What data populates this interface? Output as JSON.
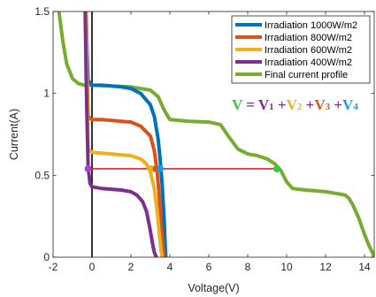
{
  "chart_data": {
    "type": "line",
    "title": "",
    "xlabel": "Voltage(V)",
    "ylabel": "Current(A)",
    "xlim": [
      -2,
      14.5
    ],
    "ylim": [
      0,
      1.5
    ],
    "xticks": [
      -2,
      0,
      2,
      4,
      6,
      8,
      10,
      12,
      14
    ],
    "yticks": [
      0,
      0.5,
      1,
      1.5
    ],
    "ytick_labels": [
      "0",
      "0.5",
      "1",
      "1.5"
    ],
    "legend_position": "top-right",
    "series": [
      {
        "name": "Irradiation 1000W/m2",
        "color": "#0072BD",
        "x": [
          -0.3,
          -0.25,
          -0.2,
          0,
          0.5,
          1,
          1.5,
          2,
          2.5,
          3,
          3.2,
          3.4,
          3.5,
          3.6,
          3.7,
          3.75,
          3.78,
          3.8
        ],
        "y": [
          1.5,
          1.25,
          1.08,
          1.05,
          1.05,
          1.045,
          1.04,
          1.03,
          1.0,
          0.93,
          0.86,
          0.72,
          0.6,
          0.45,
          0.25,
          0.1,
          0.02,
          0
        ]
      },
      {
        "name": "Irradiation 800W/m2",
        "color": "#D95319",
        "x": [
          -0.3,
          -0.25,
          -0.2,
          0,
          0.5,
          1,
          1.5,
          2,
          2.5,
          3,
          3.2,
          3.35,
          3.45,
          3.55,
          3.65,
          3.7
        ],
        "y": [
          1.5,
          1.1,
          0.86,
          0.84,
          0.84,
          0.835,
          0.83,
          0.825,
          0.8,
          0.74,
          0.65,
          0.52,
          0.38,
          0.2,
          0.06,
          0
        ]
      },
      {
        "name": "Irradiation 600W/m2",
        "color": "#EDB120",
        "x": [
          -0.3,
          -0.25,
          -0.2,
          0,
          0.5,
          1,
          1.5,
          2,
          2.5,
          2.8,
          3.0,
          3.2,
          3.35,
          3.45,
          3.55,
          3.6
        ],
        "y": [
          1.5,
          1.0,
          0.66,
          0.64,
          0.635,
          0.63,
          0.625,
          0.62,
          0.6,
          0.57,
          0.52,
          0.42,
          0.28,
          0.15,
          0.04,
          0
        ]
      },
      {
        "name": "Irradiation 400W/m2",
        "color": "#7E2F8E",
        "x": [
          -0.35,
          -0.3,
          -0.25,
          -0.2,
          -0.1,
          0,
          0.5,
          1,
          1.5,
          2,
          2.3,
          2.6,
          2.8,
          3.0,
          3.1,
          3.2,
          3.3
        ],
        "y": [
          1.5,
          1.1,
          0.8,
          0.55,
          0.45,
          0.43,
          0.42,
          0.415,
          0.41,
          0.4,
          0.38,
          0.34,
          0.28,
          0.16,
          0.09,
          0.03,
          0
        ]
      },
      {
        "name": "Final current profile",
        "color": "#77AC30",
        "x": [
          -1.7,
          -1.5,
          -1.3,
          -1.0,
          -0.7,
          -0.4,
          0,
          1,
          2,
          3,
          3.4,
          3.7,
          4.0,
          4.5,
          5,
          6,
          6.6,
          7.0,
          7.5,
          8,
          8.5,
          9.0,
          9.4,
          9.7,
          10.0,
          10.3,
          10.6,
          11,
          12,
          13,
          13.2,
          13.4,
          13.7,
          14.0,
          14.2,
          14.4,
          14.5
        ],
        "y": [
          1.5,
          1.32,
          1.18,
          1.09,
          1.06,
          1.05,
          1.05,
          1.045,
          1.04,
          1.02,
          0.98,
          0.9,
          0.84,
          0.835,
          0.83,
          0.825,
          0.81,
          0.74,
          0.66,
          0.63,
          0.62,
          0.6,
          0.57,
          0.53,
          0.46,
          0.42,
          0.415,
          0.41,
          0.4,
          0.38,
          0.36,
          0.32,
          0.24,
          0.14,
          0.08,
          0.03,
          0
        ]
      }
    ],
    "annotations": {
      "zero_line": {
        "x": 0,
        "color": "#000000"
      },
      "hline": {
        "y": 0.54,
        "x_from": -0.2,
        "x_to": 9.5,
        "color": "#D62728"
      },
      "markers": [
        {
          "x": -0.2,
          "y": 0.54,
          "color": "#B03FD0"
        },
        {
          "x": 3.05,
          "y": 0.54,
          "color": "#EDB120"
        },
        {
          "x": 3.3,
          "y": 0.54,
          "color": "#D95319"
        },
        {
          "x": 3.5,
          "y": 0.54,
          "color": "#1F9BE0"
        },
        {
          "x": 9.5,
          "y": 0.54,
          "color": "#2ECC40"
        }
      ]
    },
    "formula": {
      "parts": [
        {
          "text": "V",
          "color": "#2ECC40"
        },
        {
          "text": " = ",
          "color": "#7E2F8E"
        },
        {
          "text": "V",
          "sub": "1",
          "color": "#7E2F8E"
        },
        {
          "text": " +",
          "color": "#7E2F8E"
        },
        {
          "text": "V",
          "sub": "2",
          "color": "#EDB120"
        },
        {
          "text": " +",
          "color": "#7E2F8E"
        },
        {
          "text": "V",
          "sub": "3",
          "color": "#D95319"
        },
        {
          "text": " +",
          "color": "#7E2F8E"
        },
        {
          "text": "V",
          "sub": "4",
          "color": "#1F9BE0"
        }
      ]
    }
  }
}
